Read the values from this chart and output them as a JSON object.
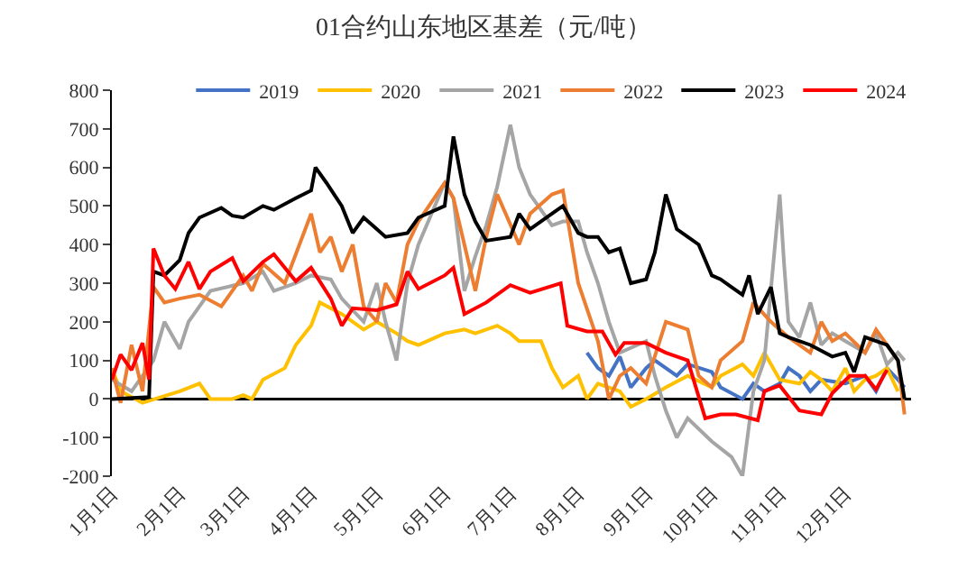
{
  "chart_data": {
    "type": "line",
    "title": "01合约山东地区基差（元/吨）",
    "legend": "top",
    "grid": false,
    "marker": "none",
    "line_style": "solid",
    "xlim": [
      "--01-01",
      "--12-31"
    ],
    "xticks": [
      {
        "value": "--01-01",
        "label": "1月1日"
      },
      {
        "value": "--02-01",
        "label": "2月1日"
      },
      {
        "value": "--03-01",
        "label": "3月1日"
      },
      {
        "value": "--04-01",
        "label": "4月1日"
      },
      {
        "value": "--05-01",
        "label": "5月1日"
      },
      {
        "value": "--06-01",
        "label": "6月1日"
      },
      {
        "value": "--07-01",
        "label": "7月1日"
      },
      {
        "value": "--08-01",
        "label": "8月1日"
      },
      {
        "value": "--09-01",
        "label": "9月1日"
      },
      {
        "value": "--10-01",
        "label": "10月1日"
      },
      {
        "value": "--11-01",
        "label": "11月1日"
      },
      {
        "value": "--12-01",
        "label": "12月1日"
      }
    ],
    "ref_lines": [
      {
        "axis": "y",
        "value": 0,
        "color": "#000000",
        "line_style": "solid"
      }
    ],
    "ylim": [
      -200,
      800
    ],
    "yticks": [
      -200,
      -100,
      0,
      100,
      200,
      300,
      400,
      500,
      600,
      700,
      800
    ],
    "series": [
      {
        "name": "2019",
        "color": "#4472c4",
        "x": [
          "--08-05",
          "--08-10",
          "--08-15",
          "--08-20",
          "--08-25",
          "--09-01",
          "--09-05",
          "--09-15",
          "--09-20",
          "--10-01",
          "--10-05",
          "--10-15",
          "--10-20",
          "--10-25",
          "--11-01",
          "--11-05",
          "--11-10",
          "--11-15",
          "--11-20",
          "--12-01",
          "--12-10",
          "--12-15",
          "--12-20",
          "--12-25",
          "--12-28"
        ],
        "values": [
          120,
          80,
          60,
          110,
          30,
          80,
          100,
          60,
          90,
          70,
          30,
          0,
          40,
          20,
          40,
          80,
          60,
          20,
          50,
          40,
          60,
          20,
          80,
          50,
          30
        ]
      },
      {
        "name": "2020",
        "color": "#ffc000",
        "x": [
          "--01-01",
          "--01-05",
          "--01-15",
          "--02-01",
          "--02-10",
          "--02-15",
          "--02-25",
          "--03-01",
          "--03-05",
          "--03-10",
          "--03-20",
          "--03-25",
          "--04-01",
          "--04-05",
          "--04-15",
          "--04-25",
          "--05-01",
          "--05-10",
          "--05-15",
          "--05-20",
          "--06-01",
          "--06-10",
          "--06-15",
          "--06-25",
          "--07-01",
          "--07-05",
          "--07-15",
          "--07-20",
          "--07-25",
          "--08-01",
          "--08-05",
          "--08-10",
          "--08-20",
          "--08-25",
          "--09-01",
          "--09-10",
          "--09-20",
          "--10-01",
          "--10-05",
          "--10-15",
          "--10-20",
          "--10-25",
          "--11-01",
          "--11-10",
          "--11-15",
          "--11-20",
          "--11-25",
          "--12-01",
          "--12-05",
          "--12-10",
          "--12-15",
          "--12-20",
          "--12-25"
        ],
        "values": [
          80,
          20,
          -10,
          20,
          40,
          0,
          0,
          10,
          0,
          50,
          80,
          140,
          190,
          250,
          220,
          180,
          200,
          170,
          150,
          140,
          170,
          180,
          170,
          190,
          170,
          150,
          150,
          80,
          30,
          60,
          0,
          40,
          20,
          -20,
          0,
          30,
          60,
          30,
          60,
          90,
          60,
          120,
          50,
          40,
          70,
          50,
          20,
          80,
          20,
          50,
          60,
          80,
          20
        ]
      },
      {
        "name": "2021",
        "color": "#a5a5a5",
        "x": [
          "--01-01",
          "--01-10",
          "--01-20",
          "--01-25",
          "--02-01",
          "--02-05",
          "--02-15",
          "--03-01",
          "--03-10",
          "--03-15",
          "--03-25",
          "--04-01",
          "--04-10",
          "--04-15",
          "--04-25",
          "--05-01",
          "--05-05",
          "--05-10",
          "--05-15",
          "--05-20",
          "--06-01",
          "--06-05",
          "--06-10",
          "--06-15",
          "--06-20",
          "--06-25",
          "--07-01",
          "--07-05",
          "--07-10",
          "--07-20",
          "--07-25",
          "--08-01",
          "--08-05",
          "--08-10",
          "--08-15",
          "--08-20",
          "--09-01",
          "--09-05",
          "--09-10",
          "--09-15",
          "--09-20",
          "--10-01",
          "--10-10",
          "--10-15",
          "--10-20",
          "--10-25",
          "--11-01",
          "--11-03",
          "--11-05",
          "--11-10",
          "--11-15",
          "--11-20",
          "--11-25",
          "--12-01",
          "--12-10",
          "--12-15",
          "--12-20",
          "--12-25",
          "--12-28"
        ],
        "values": [
          50,
          20,
          100,
          200,
          130,
          200,
          280,
          300,
          330,
          280,
          300,
          320,
          310,
          260,
          200,
          300,
          200,
          100,
          300,
          400,
          560,
          520,
          280,
          370,
          450,
          550,
          710,
          600,
          530,
          450,
          460,
          460,
          380,
          300,
          200,
          120,
          150,
          60,
          -30,
          -100,
          -50,
          -110,
          -150,
          -200,
          20,
          100,
          530,
          350,
          200,
          160,
          250,
          140,
          170,
          150,
          120,
          170,
          90,
          120,
          100
        ]
      },
      {
        "name": "2022",
        "color": "#ed7d31",
        "x": [
          "--01-01",
          "--01-05",
          "--01-10",
          "--01-15",
          "--01-20",
          "--01-25",
          "--02-01",
          "--02-10",
          "--02-20",
          "--03-01",
          "--03-05",
          "--03-10",
          "--03-20",
          "--04-01",
          "--04-05",
          "--04-10",
          "--04-15",
          "--04-20",
          "--04-25",
          "--05-01",
          "--05-05",
          "--05-10",
          "--05-15",
          "--05-20",
          "--06-01",
          "--06-05",
          "--06-10",
          "--06-15",
          "--06-20",
          "--06-25",
          "--07-05",
          "--07-10",
          "--07-20",
          "--07-25",
          "--08-01",
          "--08-10",
          "--08-15",
          "--08-20",
          "--08-25",
          "--09-01",
          "--09-10",
          "--09-20",
          "--09-25",
          "--10-01",
          "--10-05",
          "--10-15",
          "--10-20",
          "--10-28",
          "--11-05",
          "--11-15",
          "--11-20",
          "--11-25",
          "--12-01",
          "--12-10",
          "--12-15",
          "--12-25",
          "--12-28"
        ],
        "values": [
          80,
          -10,
          140,
          20,
          290,
          250,
          260,
          270,
          240,
          320,
          280,
          350,
          300,
          480,
          380,
          420,
          330,
          400,
          240,
          200,
          300,
          250,
          400,
          460,
          560,
          520,
          400,
          280,
          420,
          530,
          400,
          480,
          530,
          540,
          300,
          150,
          0,
          60,
          80,
          40,
          200,
          180,
          60,
          30,
          100,
          150,
          250,
          200,
          160,
          120,
          200,
          150,
          170,
          120,
          180,
          100,
          -40
        ]
      },
      {
        "name": "2023",
        "color": "#000000",
        "x": [
          "--01-01",
          "--01-18",
          "--01-20",
          "--01-25",
          "--02-01",
          "--02-05",
          "--02-10",
          "--02-20",
          "--02-25",
          "--03-01",
          "--03-10",
          "--03-15",
          "--03-25",
          "--04-01",
          "--04-03",
          "--04-08",
          "--04-15",
          "--04-20",
          "--04-25",
          "--05-01",
          "--05-05",
          "--05-15",
          "--05-20",
          "--06-01",
          "--06-05",
          "--06-10",
          "--06-15",
          "--06-20",
          "--07-01",
          "--07-05",
          "--07-10",
          "--07-20",
          "--07-25",
          "--08-01",
          "--08-05",
          "--08-10",
          "--08-15",
          "--08-20",
          "--08-25",
          "--09-01",
          "--09-05",
          "--09-10",
          "--09-15",
          "--09-20",
          "--09-25",
          "--10-01",
          "--10-05",
          "--10-10",
          "--10-15",
          "--10-18",
          "--10-22",
          "--10-28",
          "--11-01",
          "--11-05",
          "--11-15",
          "--11-25",
          "--12-01",
          "--12-05",
          "--12-10",
          "--12-15",
          "--12-20",
          "--12-25",
          "--12-28"
        ],
        "values": [
          0,
          5,
          330,
          320,
          360,
          430,
          470,
          495,
          475,
          470,
          500,
          490,
          520,
          540,
          600,
          560,
          500,
          430,
          470,
          440,
          420,
          430,
          470,
          500,
          680,
          530,
          460,
          410,
          420,
          480,
          440,
          480,
          500,
          430,
          420,
          420,
          380,
          390,
          300,
          310,
          380,
          530,
          440,
          420,
          400,
          320,
          310,
          290,
          270,
          320,
          220,
          290,
          170,
          160,
          140,
          110,
          120,
          70,
          160,
          150,
          140,
          100,
          0
        ]
      },
      {
        "name": "2024",
        "color": "#ff0000",
        "x": [
          "--01-01",
          "--01-05",
          "--01-10",
          "--01-15",
          "--01-18",
          "--01-20",
          "--01-25",
          "--01-30",
          "--02-05",
          "--02-10",
          "--02-15",
          "--02-25",
          "--03-01",
          "--03-10",
          "--03-15",
          "--03-25",
          "--04-01",
          "--04-10",
          "--04-15",
          "--04-20",
          "--05-01",
          "--05-10",
          "--05-15",
          "--05-20",
          "--06-01",
          "--06-05",
          "--06-10",
          "--06-20",
          "--07-01",
          "--07-10",
          "--07-24",
          "--07-27",
          "--08-05",
          "--08-12",
          "--08-18",
          "--08-22",
          "--09-01",
          "--09-10",
          "--09-20",
          "--09-28",
          "--10-05",
          "--10-12",
          "--10-22",
          "--10-25",
          "--11-01",
          "--11-10",
          "--11-20",
          "--11-25",
          "--12-03",
          "--12-10",
          "--12-15",
          "--12-20"
        ],
        "values": [
          50,
          115,
          75,
          145,
          50,
          390,
          320,
          285,
          355,
          285,
          330,
          365,
          305,
          355,
          375,
          305,
          340,
          260,
          190,
          235,
          230,
          245,
          330,
          285,
          320,
          340,
          220,
          250,
          295,
          275,
          300,
          190,
          175,
          175,
          115,
          145,
          145,
          120,
          100,
          -50,
          -40,
          -40,
          -55,
          20,
          35,
          -30,
          -40,
          15,
          60,
          60,
          25,
          75
        ]
      }
    ]
  }
}
